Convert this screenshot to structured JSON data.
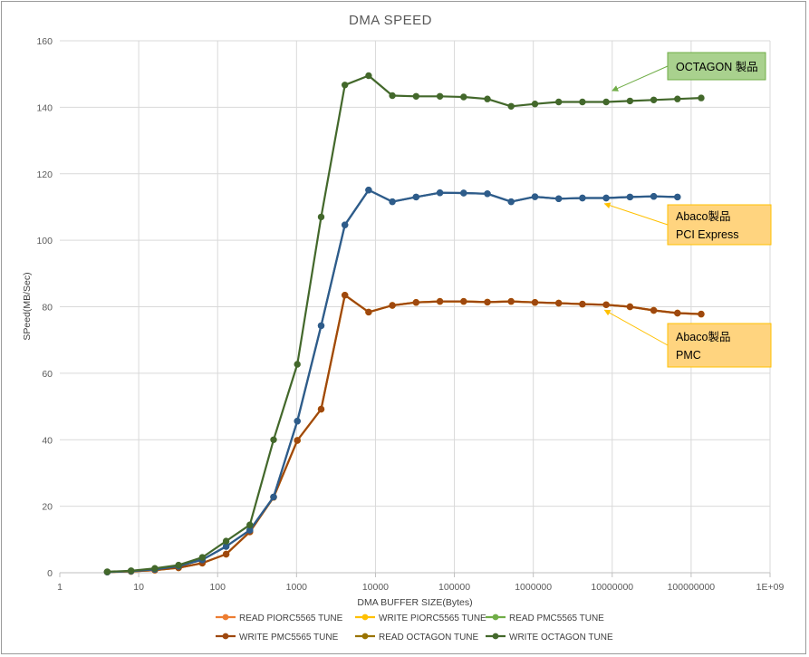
{
  "chart_data": {
    "type": "line",
    "title": "DMA  SPEED",
    "xlabel": "DMA BUFFER SIZE(Bytes)",
    "ylabel": "SPeed(MB/Sec)",
    "x_scale": "log",
    "xlim": [
      1,
      1000000000
    ],
    "ylim": [
      0,
      160
    ],
    "x_ticks": [
      1,
      10,
      100,
      1000,
      10000,
      100000,
      1000000,
      10000000,
      100000000,
      1000000000
    ],
    "x_tick_labels": [
      "1",
      "10",
      "100",
      "1000",
      "10000",
      "100000",
      "1000000",
      "10000000",
      "100000000",
      "1E+09"
    ],
    "y_ticks": [
      0,
      20,
      40,
      60,
      80,
      100,
      120,
      140,
      160
    ],
    "y_tick_labels": [
      "0",
      "20",
      "40",
      "60",
      "80",
      "100",
      "120",
      "140",
      "160"
    ],
    "grid": true,
    "legend_position": "bottom",
    "series": [
      {
        "name": "READ PIORC5565 TUNE",
        "color": "#ED7D31",
        "points": [
          [
            4,
            0.2
          ],
          [
            8,
            0.4
          ],
          [
            16,
            0.8
          ],
          [
            32,
            1.5
          ],
          [
            64,
            2.9
          ],
          [
            128,
            5.6
          ],
          [
            256,
            12.3
          ],
          [
            512,
            22.7
          ],
          [
            1024,
            39.8
          ],
          [
            2048,
            49.2
          ],
          [
            4096,
            83.5
          ],
          [
            8192,
            78.4
          ],
          [
            16384,
            80.4
          ],
          [
            32768,
            81.3
          ],
          [
            65536,
            81.6
          ],
          [
            131072,
            81.6
          ],
          [
            262144,
            81.4
          ],
          [
            524288,
            81.6
          ],
          [
            1048576,
            81.3
          ],
          [
            2097152,
            81.1
          ],
          [
            4194304,
            80.8
          ],
          [
            8388608,
            80.6
          ],
          [
            16777216,
            80.0
          ],
          [
            33554432,
            78.9
          ],
          [
            67108864,
            78.1
          ],
          [
            134217728,
            77.8
          ]
        ]
      },
      {
        "name": "WRITE PIORC5565 TUNE",
        "color": "#FFC000",
        "points": [
          [
            4,
            0.2
          ],
          [
            8,
            0.4
          ],
          [
            16,
            0.8
          ],
          [
            32,
            1.5
          ],
          [
            64,
            2.9
          ],
          [
            128,
            5.6
          ],
          [
            256,
            12.3
          ],
          [
            512,
            22.7
          ],
          [
            1024,
            39.8
          ],
          [
            2048,
            49.2
          ],
          [
            4096,
            83.5
          ],
          [
            8192,
            78.4
          ],
          [
            16384,
            80.4
          ],
          [
            32768,
            81.3
          ],
          [
            65536,
            81.6
          ],
          [
            131072,
            81.6
          ],
          [
            262144,
            81.4
          ],
          [
            524288,
            81.6
          ],
          [
            1048576,
            81.3
          ],
          [
            2097152,
            81.1
          ],
          [
            4194304,
            80.8
          ],
          [
            8388608,
            80.6
          ],
          [
            16777216,
            80.0
          ],
          [
            33554432,
            78.9
          ],
          [
            67108864,
            78.1
          ],
          [
            134217728,
            77.8
          ]
        ]
      },
      {
        "name": "READ PMC5565 TUNE",
        "color": "#70AD47",
        "points": [
          [
            4,
            0.2
          ],
          [
            8,
            0.5
          ],
          [
            16,
            1.0
          ],
          [
            32,
            2.0
          ],
          [
            64,
            3.9
          ],
          [
            128,
            7.9
          ],
          [
            256,
            12.8
          ],
          [
            512,
            22.8
          ],
          [
            1024,
            45.6
          ],
          [
            2048,
            74.3
          ],
          [
            4096,
            104.6
          ],
          [
            8192,
            115.1
          ],
          [
            16384,
            111.6
          ],
          [
            32768,
            113.0
          ],
          [
            65536,
            114.3
          ],
          [
            131072,
            114.2
          ],
          [
            262144,
            114.0
          ],
          [
            524288,
            111.6
          ],
          [
            1048576,
            113.1
          ],
          [
            2097152,
            112.5
          ],
          [
            4194304,
            112.7
          ],
          [
            8388608,
            112.7
          ],
          [
            16777216,
            113.0
          ],
          [
            33554432,
            113.2
          ],
          [
            67108864,
            113.0
          ]
        ]
      },
      {
        "name": "WRITE PMC5565 TUNE",
        "color": "#9E480E",
        "points": [
          [
            4,
            0.2
          ],
          [
            8,
            0.4
          ],
          [
            16,
            0.8
          ],
          [
            32,
            1.5
          ],
          [
            64,
            2.9
          ],
          [
            128,
            5.6
          ],
          [
            256,
            12.3
          ],
          [
            512,
            22.7
          ],
          [
            1024,
            39.8
          ],
          [
            2048,
            49.2
          ],
          [
            4096,
            83.5
          ],
          [
            8192,
            78.4
          ],
          [
            16384,
            80.4
          ],
          [
            32768,
            81.3
          ],
          [
            65536,
            81.6
          ],
          [
            131072,
            81.6
          ],
          [
            262144,
            81.4
          ],
          [
            524288,
            81.6
          ],
          [
            1048576,
            81.3
          ],
          [
            2097152,
            81.1
          ],
          [
            4194304,
            80.8
          ],
          [
            8388608,
            80.6
          ],
          [
            16777216,
            80.0
          ],
          [
            33554432,
            78.9
          ],
          [
            67108864,
            78.1
          ],
          [
            134217728,
            77.8
          ]
        ]
      },
      {
        "name": "READ OCTAGON TUNE",
        "color": "#997300",
        "points": [
          [
            4,
            0.2
          ],
          [
            8,
            0.5
          ],
          [
            16,
            1.0
          ],
          [
            32,
            2.0
          ],
          [
            64,
            3.9
          ],
          [
            128,
            7.9
          ],
          [
            256,
            12.8
          ],
          [
            512,
            22.8
          ],
          [
            1024,
            45.6
          ],
          [
            2048,
            74.3
          ],
          [
            4096,
            104.6
          ],
          [
            8192,
            115.1
          ],
          [
            16384,
            111.6
          ],
          [
            32768,
            113.0
          ],
          [
            65536,
            114.3
          ],
          [
            131072,
            114.2
          ],
          [
            262144,
            114.0
          ],
          [
            524288,
            111.6
          ],
          [
            1048576,
            113.1
          ],
          [
            2097152,
            112.5
          ],
          [
            4194304,
            112.7
          ],
          [
            8388608,
            112.7
          ],
          [
            16777216,
            113.0
          ],
          [
            33554432,
            113.2
          ],
          [
            67108864,
            113.0
          ]
        ]
      },
      {
        "name": "WRITE OCTAGON TUNE",
        "color": "#43682B",
        "points": [
          [
            4,
            0.3
          ],
          [
            8,
            0.6
          ],
          [
            16,
            1.3
          ],
          [
            32,
            2.3
          ],
          [
            64,
            4.6
          ],
          [
            128,
            9.5
          ],
          [
            256,
            14.4
          ],
          [
            512,
            40.0
          ],
          [
            1024,
            62.7
          ],
          [
            2048,
            107.0
          ],
          [
            4096,
            146.7
          ],
          [
            8192,
            149.5
          ],
          [
            16384,
            143.5
          ],
          [
            32768,
            143.3
          ],
          [
            65536,
            143.3
          ],
          [
            131072,
            143.1
          ],
          [
            262144,
            142.5
          ],
          [
            524288,
            140.3
          ],
          [
            1048576,
            141.0
          ],
          [
            2097152,
            141.6
          ],
          [
            4194304,
            141.6
          ],
          [
            8388608,
            141.6
          ],
          [
            16777216,
            141.9
          ],
          [
            33554432,
            142.2
          ],
          [
            67108864,
            142.5
          ],
          [
            134217728,
            142.8
          ]
        ]
      }
    ],
    "draw_order": [
      "READ PIORC5565 TUNE",
      "WRITE PIORC5565 TUNE",
      "WRITE PMC5565 TUNE",
      "READ PMC5565 TUNE",
      "READ OCTAGON TUNE",
      "WRITE OCTAGON TUNE"
    ],
    "display_colors": {
      "READ PMC5565 TUNE": "#2E5C8A",
      "READ OCTAGON TUNE": "#2E5C8A"
    },
    "annotations": [
      {
        "name": "octagon",
        "lines": [
          "OCTAGON 製品"
        ],
        "fill": "#A9D18E",
        "border": "#70AD47",
        "arrow_color": "#70AD47",
        "arrow_to": [
          10000000,
          145
        ]
      },
      {
        "name": "abaco-pci",
        "lines": [
          "Abaco製品",
          "PCI Express"
        ],
        "fill": "#FFD47F",
        "border": "#FFC000",
        "arrow_color": "#FFC000",
        "arrow_to": [
          8000000,
          111
        ]
      },
      {
        "name": "abaco-pmc",
        "lines": [
          "Abaco製品",
          "PMC"
        ],
        "fill": "#FFD47F",
        "border": "#FFC000",
        "arrow_color": "#FFC000",
        "arrow_to": [
          8000000,
          79
        ]
      }
    ]
  }
}
